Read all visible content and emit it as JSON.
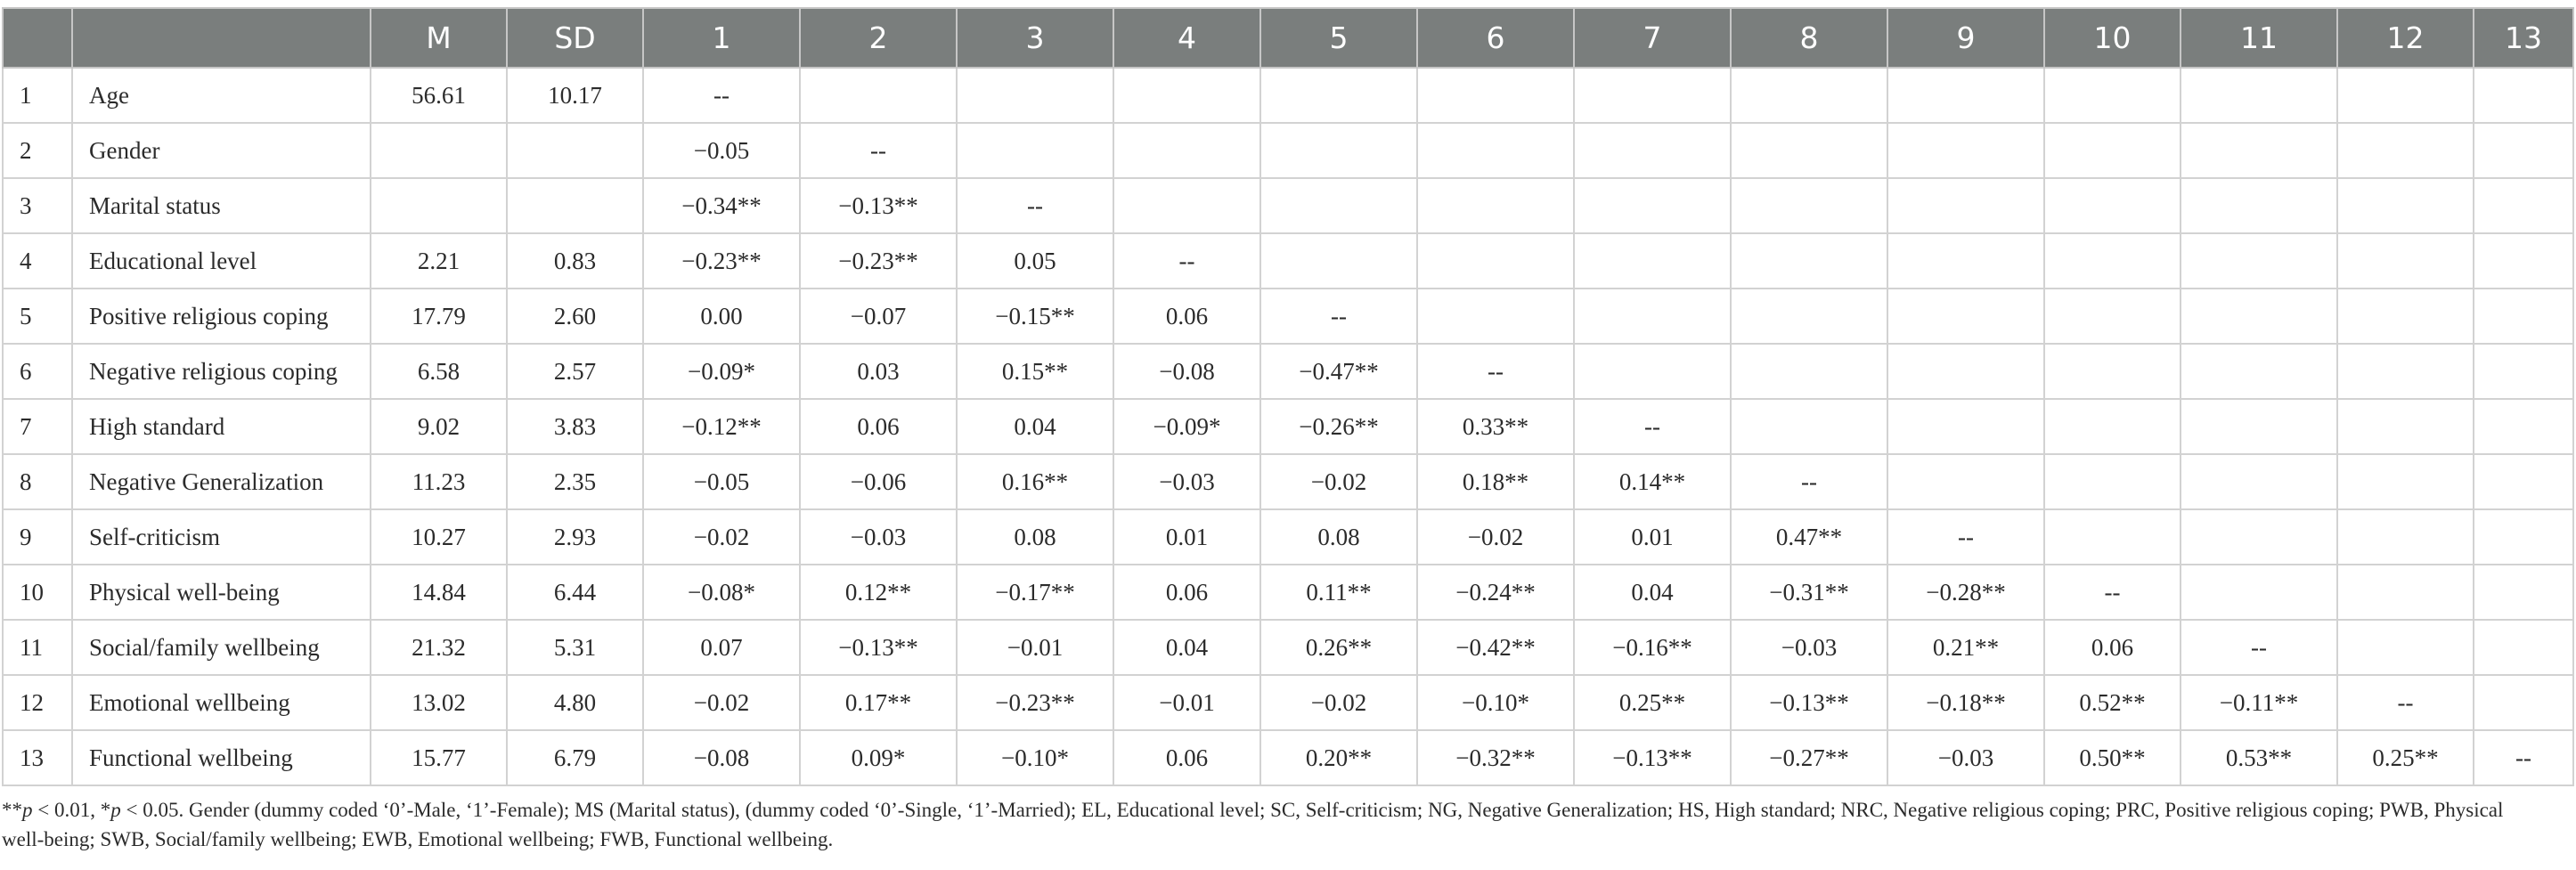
{
  "table": {
    "headers": [
      "",
      "",
      "M",
      "SD",
      "1",
      "2",
      "3",
      "4",
      "5",
      "6",
      "7",
      "8",
      "9",
      "10",
      "11",
      "12",
      "13"
    ],
    "rows": [
      {
        "num": "1",
        "variable": "Age",
        "m": "56.61",
        "sd": "10.17",
        "values": [
          "--",
          "",
          "",
          "",
          "",
          "",
          "",
          "",
          "",
          "",
          "",
          "",
          ""
        ]
      },
      {
        "num": "2",
        "variable": "Gender",
        "m": "",
        "sd": "",
        "values": [
          "−0.05",
          "--",
          "",
          "",
          "",
          "",
          "",
          "",
          "",
          "",
          "",
          "",
          ""
        ]
      },
      {
        "num": "3",
        "variable": "Marital status",
        "m": "",
        "sd": "",
        "values": [
          "−0.34**",
          "−0.13**",
          "--",
          "",
          "",
          "",
          "",
          "",
          "",
          "",
          "",
          "",
          ""
        ]
      },
      {
        "num": "4",
        "variable": "Educational level",
        "m": "2.21",
        "sd": "0.83",
        "values": [
          "−0.23**",
          "−0.23**",
          "0.05",
          "--",
          "",
          "",
          "",
          "",
          "",
          "",
          "",
          "",
          ""
        ]
      },
      {
        "num": "5",
        "variable": "Positive religious coping",
        "m": "17.79",
        "sd": "2.60",
        "values": [
          "0.00",
          "−0.07",
          "−0.15**",
          "0.06",
          "--",
          "",
          "",
          "",
          "",
          "",
          "",
          "",
          ""
        ]
      },
      {
        "num": "6",
        "variable": "Negative religious coping",
        "m": "6.58",
        "sd": "2.57",
        "values": [
          "−0.09*",
          "0.03",
          "0.15**",
          "−0.08",
          "−0.47**",
          "--",
          "",
          "",
          "",
          "",
          "",
          "",
          ""
        ]
      },
      {
        "num": "7",
        "variable": "High standard",
        "m": "9.02",
        "sd": "3.83",
        "values": [
          "−0.12**",
          "0.06",
          "0.04",
          "−0.09*",
          "−0.26**",
          "0.33**",
          "--",
          "",
          "",
          "",
          "",
          "",
          ""
        ]
      },
      {
        "num": "8",
        "variable": "Negative Generalization",
        "m": "11.23",
        "sd": "2.35",
        "values": [
          "−0.05",
          "−0.06",
          "0.16**",
          "−0.03",
          "−0.02",
          "0.18**",
          "0.14**",
          "--",
          "",
          "",
          "",
          "",
          ""
        ]
      },
      {
        "num": "9",
        "variable": "Self-criticism",
        "m": "10.27",
        "sd": "2.93",
        "values": [
          "−0.02",
          "−0.03",
          "0.08",
          "0.01",
          "0.08",
          "−0.02",
          "0.01",
          "0.47**",
          "--",
          "",
          "",
          "",
          ""
        ]
      },
      {
        "num": "10",
        "variable": "Physical well-being",
        "m": "14.84",
        "sd": "6.44",
        "values": [
          "−0.08*",
          "0.12**",
          "−0.17**",
          "0.06",
          "0.11**",
          "−0.24**",
          "0.04",
          "−0.31**",
          "−0.28**",
          "--",
          "",
          "",
          ""
        ]
      },
      {
        "num": "11",
        "variable": "Social/family wellbeing",
        "m": "21.32",
        "sd": "5.31",
        "values": [
          "0.07",
          "−0.13**",
          "−0.01",
          "0.04",
          "0.26**",
          "−0.42**",
          "−0.16**",
          "−0.03",
          "0.21**",
          "0.06",
          "--",
          "",
          ""
        ]
      },
      {
        "num": "12",
        "variable": "Emotional wellbeing",
        "m": "13.02",
        "sd": "4.80",
        "values": [
          "−0.02",
          "0.17**",
          "−0.23**",
          "−0.01",
          "−0.02",
          "−0.10*",
          "0.25**",
          "−0.13**",
          "−0.18**",
          "0.52**",
          "−0.11**",
          "--",
          ""
        ]
      },
      {
        "num": "13",
        "variable": "Functional wellbeing",
        "m": "15.77",
        "sd": "6.79",
        "values": [
          "−0.08",
          "0.09*",
          "−0.10*",
          "0.06",
          "0.20**",
          "−0.32**",
          "−0.13**",
          "−0.27**",
          "−0.03",
          "0.50**",
          "0.53**",
          "0.25**",
          "--"
        ]
      }
    ]
  },
  "note": {
    "p1_prefix": "**",
    "p1_p": "p",
    "p1_rest": " < 0.01, *",
    "p2_p": "p",
    "text": " < 0.05. Gender (dummy coded ‘0’-Male, ‘1’-Female); MS (Marital status), (dummy coded ‘0’-Single, ‘1’-Married); EL, Educational level; SC, Self-criticism; NG, Negative Generalization; HS, High standard; NRC, Negative religious coping; PRC, Positive religious coping; PWB, Physical well-being; SWB, Social/family wellbeing; EWB, Emotional wellbeing; FWB, Functional wellbeing."
  },
  "colors": {
    "header_bg": "#7a7e7d",
    "header_text": "#ffffff",
    "border": "#d2d2d2"
  }
}
